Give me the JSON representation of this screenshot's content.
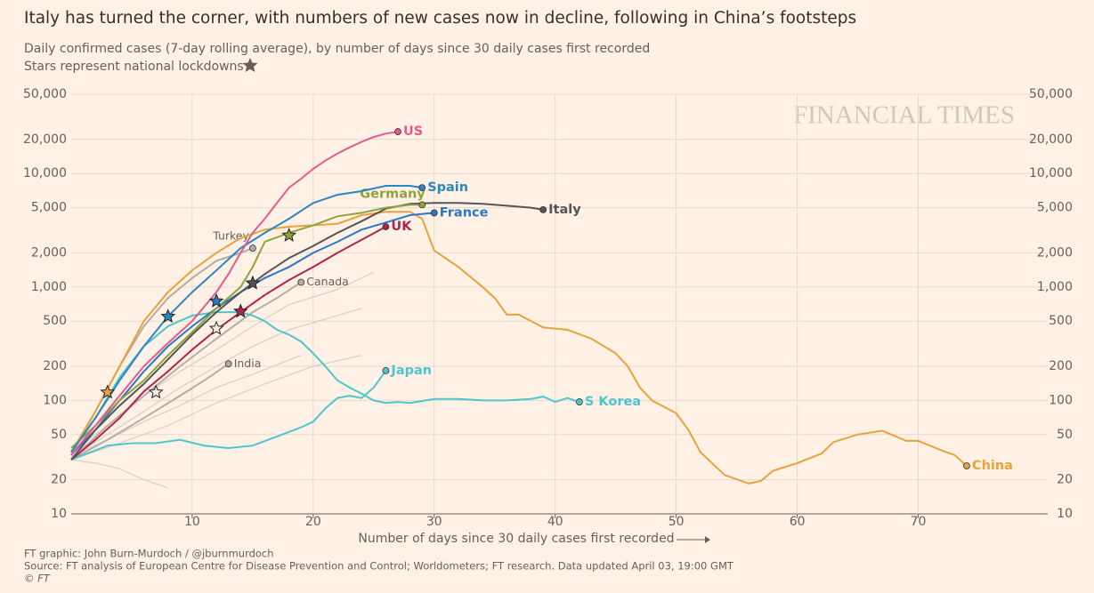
{
  "chart_data": {
    "type": "line",
    "title": "Italy has turned the corner, with numbers of new cases now in decline, following in China’s footsteps",
    "subtitle": "Daily confirmed cases (7-day rolling average), by number of days since 30 daily cases first recorded",
    "note": "Stars represent national lockdowns",
    "x_label": "Number of days since 30 daily cases first recorded",
    "watermark": "FINANCIAL TIMES",
    "credits": [
      "FT graphic: John Burn-Murdoch / @jburnmurdoch",
      "Source: FT analysis of European Centre for Disease Prevention and Control; Worldometers; FT research. Data updated April 03, 19:00 GMT",
      "© FT"
    ],
    "log_y": true,
    "grid": true,
    "xlim": [
      0,
      80.7
    ],
    "xticks": [
      10,
      20,
      30,
      40,
      50,
      60,
      70
    ],
    "ylim": [
      10,
      50000
    ],
    "yticks": [
      10,
      20,
      50,
      100,
      200,
      500,
      {
        "value": 1000,
        "label": "1,000"
      },
      {
        "value": 2000,
        "label": "2,000"
      },
      {
        "value": 5000,
        "label": "5,000"
      },
      {
        "value": 10000,
        "label": "10,000"
      },
      {
        "value": 20000,
        "label": "20,000"
      },
      {
        "value": 50000,
        "label": "50,000"
      }
    ],
    "series": [
      {
        "color": "#d9d0c7",
        "x": [
          0,
          3,
          6,
          9,
          12,
          15,
          18,
          21,
          24
        ],
        "values": [
          32,
          50,
          80,
          130,
          200,
          300,
          420,
          520,
          650
        ]
      },
      {
        "color": "#d9d0c7",
        "x": [
          0,
          3,
          6,
          9,
          12,
          15,
          18,
          22,
          25
        ],
        "values": [
          35,
          60,
          110,
          180,
          280,
          450,
          700,
          950,
          1350
        ]
      },
      {
        "color": "#d9d0c7",
        "x": [
          0,
          4,
          8,
          12,
          16,
          20,
          24
        ],
        "values": [
          30,
          42,
          60,
          95,
          140,
          200,
          250
        ]
      },
      {
        "color": "#d9d0c7",
        "x": [
          0,
          3,
          6,
          9,
          12,
          15,
          19
        ],
        "values": [
          32,
          45,
          65,
          90,
          130,
          170,
          250
        ]
      },
      {
        "color": "#d9d0c7",
        "x": [
          0,
          2,
          4,
          6,
          8
        ],
        "values": [
          30,
          28,
          25,
          20,
          17
        ]
      },
      {
        "name": "Turkey",
        "color": "#b5aca3",
        "x": [
          0,
          2,
          4,
          6,
          8,
          10,
          12,
          14,
          15
        ],
        "values": [
          33,
          80,
          200,
          450,
          800,
          1200,
          1700,
          2000,
          2200
        ]
      },
      {
        "name": "Canada",
        "color": "#b5aca3",
        "x": [
          0,
          3,
          6,
          9,
          12,
          15,
          17,
          19
        ],
        "values": [
          30,
          60,
          110,
          200,
          350,
          600,
          800,
          1100
        ]
      },
      {
        "name": "India",
        "color": "#b5aca3",
        "x": [
          0,
          3,
          6,
          9,
          11,
          13
        ],
        "values": [
          30,
          45,
          70,
          110,
          150,
          210
        ]
      },
      {
        "name": "China",
        "color": "#e8a23a",
        "x": [
          0,
          2,
          4,
          6,
          8,
          10,
          12,
          14,
          16,
          18,
          20,
          22,
          24,
          26,
          28,
          29,
          30,
          32,
          34,
          35,
          36,
          37,
          38,
          39,
          40,
          41,
          43,
          45,
          46,
          47,
          48,
          50,
          51,
          52,
          54,
          56,
          57,
          58,
          60,
          62,
          63,
          65,
          67,
          68,
          69,
          70,
          72,
          73,
          74
        ],
        "values": [
          35,
          80,
          200,
          500,
          900,
          1400,
          2000,
          2700,
          3200,
          3400,
          3500,
          3600,
          4300,
          4600,
          4600,
          4000,
          2100,
          1500,
          1000,
          800,
          570,
          570,
          500,
          440,
          430,
          420,
          350,
          260,
          200,
          130,
          100,
          77,
          55,
          35,
          22,
          18.5,
          19.5,
          24,
          28,
          34,
          43,
          50,
          54,
          49,
          44,
          44,
          36,
          33,
          26.5
        ]
      },
      {
        "name": "S Korea",
        "color": "#4cc5cf",
        "x": [
          0,
          2,
          4,
          6,
          8,
          10,
          12,
          14,
          15,
          16,
          17,
          18,
          19,
          20,
          21,
          22,
          23,
          24,
          25,
          26,
          27,
          28,
          30,
          32,
          34,
          36,
          38,
          39,
          40,
          41,
          42
        ],
        "values": [
          35,
          70,
          160,
          300,
          450,
          560,
          600,
          600,
          560,
          500,
          420,
          380,
          330,
          260,
          200,
          150,
          130,
          115,
          100,
          95,
          97,
          95,
          103,
          103,
          100,
          100,
          103,
          108,
          97,
          105,
          97
        ]
      },
      {
        "name": "Japan",
        "color": "#4cc5cf",
        "x": [
          0,
          3,
          5,
          7,
          9,
          11,
          13,
          15,
          17,
          19,
          20,
          21,
          22,
          23,
          24,
          25,
          26
        ],
        "values": [
          30,
          40,
          42,
          42,
          45,
          40,
          38,
          40,
          48,
          58,
          65,
          85,
          105,
          110,
          105,
          130,
          183
        ]
      },
      {
        "name": "UK",
        "color": "#b0234f",
        "x": [
          0,
          2,
          4,
          6,
          8,
          10,
          12,
          14,
          16,
          18,
          20,
          22,
          24,
          26
        ],
        "values": [
          30,
          45,
          70,
          120,
          180,
          280,
          420,
          600,
          850,
          1150,
          1500,
          2000,
          2600,
          3400
        ]
      },
      {
        "name": "France",
        "color": "#2a78c8",
        "x": [
          0,
          2,
          4,
          6,
          8,
          10,
          12,
          14,
          16,
          18,
          20,
          22,
          24,
          26,
          28,
          30
        ],
        "values": [
          33,
          55,
          100,
          180,
          300,
          450,
          650,
          900,
          1200,
          1500,
          2000,
          2500,
          3200,
          3700,
          4300,
          4500
        ]
      },
      {
        "name": "Italy",
        "color": "#555555",
        "x": [
          0,
          2,
          4,
          6,
          8,
          10,
          12,
          14,
          16,
          18,
          20,
          22,
          24,
          26,
          28,
          30,
          32,
          34,
          36,
          38,
          39
        ],
        "values": [
          30,
          55,
          90,
          140,
          230,
          380,
          600,
          900,
          1300,
          1800,
          2300,
          3000,
          3800,
          4900,
          5400,
          5500,
          5500,
          5400,
          5200,
          5000,
          4800
        ]
      },
      {
        "name": "Germany",
        "color": "#8ea33b",
        "x": [
          0,
          2,
          4,
          6,
          8,
          10,
          12,
          14,
          15,
          16,
          18,
          20,
          22,
          24,
          26,
          28,
          29
        ],
        "values": [
          38,
          60,
          100,
          150,
          250,
          400,
          650,
          1000,
          1500,
          2500,
          3000,
          3500,
          4200,
          4500,
          5000,
          5300,
          5300
        ]
      },
      {
        "name": "Spain",
        "color": "#2e86c1",
        "x": [
          0,
          2,
          4,
          6,
          8,
          10,
          12,
          14,
          16,
          18,
          20,
          22,
          24,
          26,
          28,
          29
        ],
        "values": [
          35,
          70,
          150,
          300,
          550,
          900,
          1400,
          2200,
          3000,
          4000,
          5500,
          6500,
          7000,
          7800,
          7800,
          7500
        ]
      },
      {
        "name": "US",
        "color": "#e55a8c",
        "x": [
          0,
          2,
          4,
          6,
          8,
          10,
          12,
          13,
          14,
          15,
          16,
          17,
          18,
          19,
          20,
          21,
          22,
          23,
          24,
          25,
          26,
          27
        ],
        "values": [
          33,
          60,
          110,
          200,
          320,
          500,
          900,
          1300,
          2000,
          3000,
          4000,
          5500,
          7500,
          9000,
          11000,
          13000,
          15000,
          17000,
          19000,
          21000,
          22500,
          23400
        ]
      }
    ],
    "lockdowns": {
      "x": [
        3,
        7,
        8,
        12,
        12,
        14,
        15,
        18
      ],
      "values": [
        118,
        118,
        550,
        750,
        430,
        610,
        1080,
        2850
      ],
      "colors": [
        "#e8a23a",
        "#f4ece4",
        "#2e86c1",
        "#2a78c8",
        "#f4ece4",
        "#b0234f",
        "#555555",
        "#8ea33b"
      ]
    }
  }
}
